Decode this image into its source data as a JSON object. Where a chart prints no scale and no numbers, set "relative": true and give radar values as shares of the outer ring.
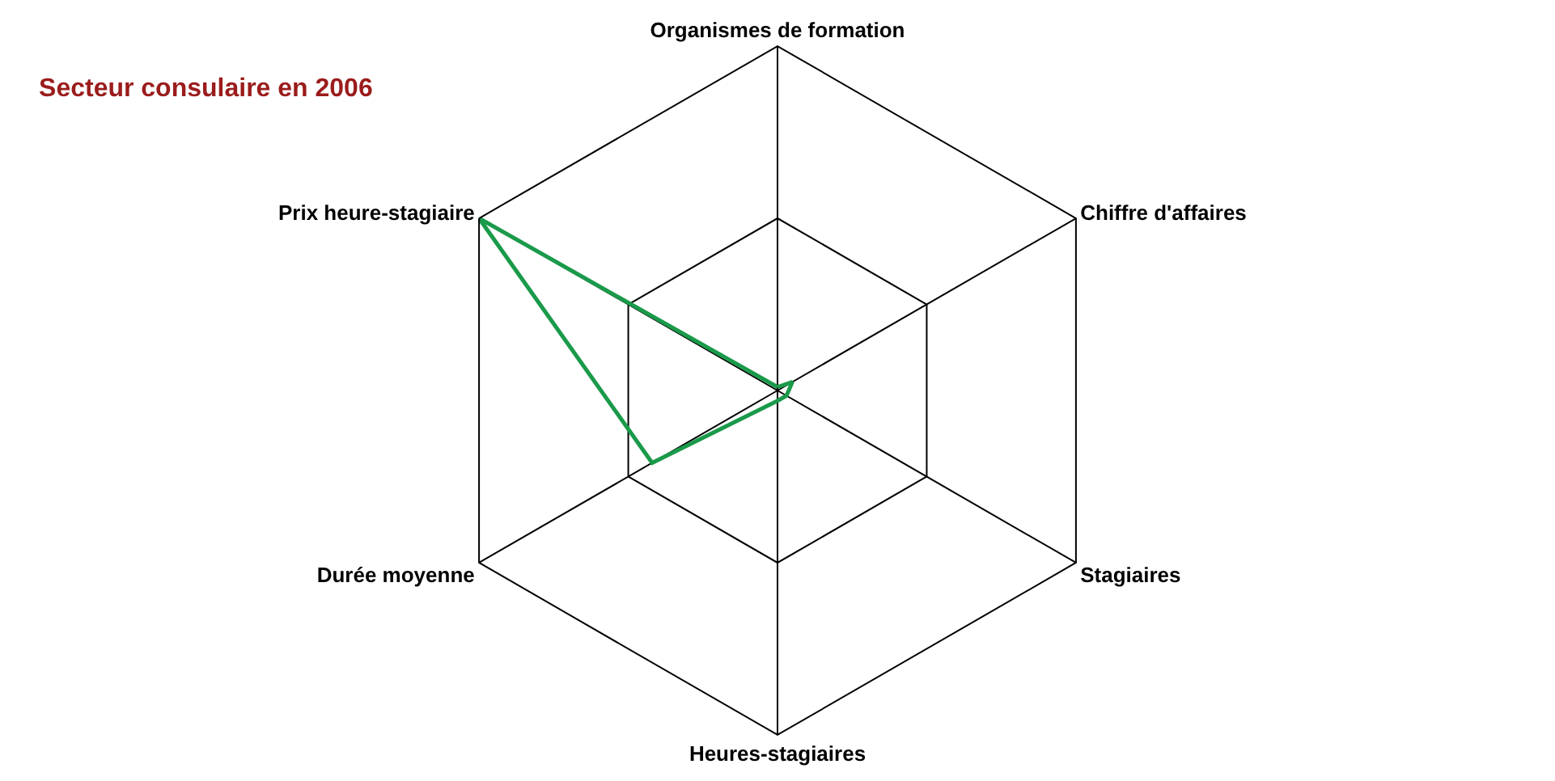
{
  "chart_data": {
    "type": "radar",
    "title": "Secteur consulaire en 2006",
    "relative": true,
    "categories": [
      "Organismes de formation",
      "Chiffre d'affaires",
      "Stagiaires",
      "Heures-stagiaires",
      "Durée moyenne",
      "Prix heure-stagiaire"
    ],
    "series": [
      {
        "color": "#1a9a4a",
        "values": [
          0.01,
          0.05,
          0.03,
          0.03,
          0.42,
          1
        ]
      }
    ],
    "marker": "none"
  }
}
